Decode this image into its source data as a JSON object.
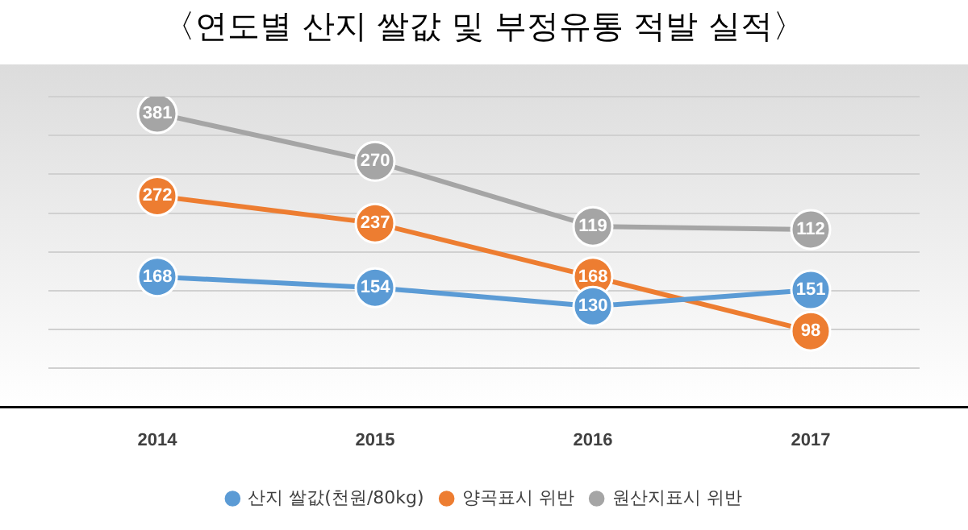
{
  "chart_data": {
    "type": "line",
    "title": "〈연도별 산지 쌀값 및 부정유통 적발 실적〉",
    "categories": [
      "2014",
      "2015",
      "2016",
      "2017"
    ],
    "series": [
      {
        "name": "산지 쌀값(천원/80kg)",
        "color": "#5b9bd5",
        "values": [
          168,
          154,
          130,
          151
        ]
      },
      {
        "name": "양곡표시 위반",
        "color": "#ed7d31",
        "values": [
          272,
          237,
          168,
          98
        ]
      },
      {
        "name": "원산지표시 위반",
        "color": "#a5a5a5",
        "values": [
          381,
          270,
          119,
          112
        ],
        "axis": "y2"
      }
    ],
    "ylim": [
      0,
      400
    ],
    "yticks": [
      {
        "value": 0,
        "label": null
      },
      {
        "value": 50,
        "label": null
      },
      {
        "value": 100,
        "label": null
      },
      {
        "value": 150,
        "label": null
      },
      {
        "value": 200,
        "label": null
      },
      {
        "value": 250,
        "label": null
      },
      {
        "value": 300,
        "label": null
      },
      {
        "value": 350,
        "label": null
      },
      {
        "value": 400,
        "label": null
      }
    ],
    "y2lim": [
      -300,
      420
    ],
    "tick_labels": "x",
    "grid": "y",
    "legend": "bottom",
    "marker": "circle",
    "line_style": "solid",
    "data_labels": true
  }
}
